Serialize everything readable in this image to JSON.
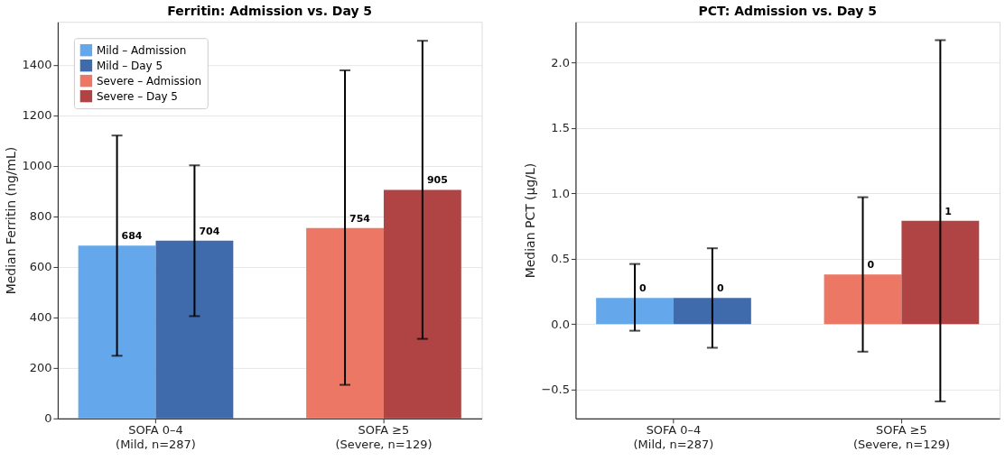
{
  "chart_data": [
    {
      "type": "bar",
      "title": "Ferritin: Admission vs. Day 5",
      "ylabel": "Median Ferritin (ng/mL)",
      "categories": [
        "SOFA 0–4\n(Mild, n=287)",
        "SOFA ≥5\n(Severe, n=129)"
      ],
      "series": [
        {
          "name": "Mild – Admission",
          "color": "#64a8eb",
          "values": [
            684,
            null
          ],
          "errors": [
            [
              248,
              1120
            ],
            null
          ]
        },
        {
          "name": "Mild – Day 5",
          "color": "#3f6aab",
          "values": [
            704,
            null
          ],
          "errors": [
            [
              405,
              1002
            ],
            null
          ]
        },
        {
          "name": "Severe – Admission",
          "color": "#eb7764",
          "values": [
            null,
            754
          ],
          "errors": [
            null,
            [
              133,
              1378
            ]
          ]
        },
        {
          "name": "Severe – Day 5",
          "color": "#b04343",
          "values": [
            null,
            905
          ],
          "errors": [
            null,
            [
              315,
              1495
            ]
          ]
        }
      ],
      "ylim": [
        0,
        1570
      ],
      "yticks": [
        0,
        200,
        400,
        600,
        800,
        1000,
        1200,
        1400
      ],
      "grid": "y",
      "legend": "top left",
      "data_labels": true
    },
    {
      "type": "bar",
      "title": "PCT: Admission vs. Day 5",
      "ylabel": "Median PCT (µg/L)",
      "categories": [
        "SOFA 0–4\n(Mild, n=287)",
        "SOFA ≥5\n(Severe, n=129)"
      ],
      "series": [
        {
          "name": "Mild – Admission",
          "color": "#64a8eb",
          "values": [
            0.2,
            null
          ],
          "errors": [
            [
              -0.05,
              0.46
            ],
            null
          ],
          "value_labels": [
            "0",
            null
          ]
        },
        {
          "name": "Mild – Day 5",
          "color": "#3f6aab",
          "values": [
            0.2,
            null
          ],
          "errors": [
            [
              -0.18,
              0.58
            ],
            null
          ],
          "value_labels": [
            "0",
            null
          ]
        },
        {
          "name": "Severe – Admission",
          "color": "#eb7764",
          "values": [
            null,
            0.38
          ],
          "errors": [
            null,
            [
              -0.21,
              0.97
            ]
          ],
          "value_labels": [
            null,
            "0"
          ]
        },
        {
          "name": "Severe – Day 5",
          "color": "#b04343",
          "values": [
            null,
            0.79
          ],
          "errors": [
            null,
            [
              -0.59,
              2.17
            ]
          ],
          "value_labels": [
            null,
            "1"
          ]
        }
      ],
      "ylim": [
        -0.72,
        2.31
      ],
      "yticks": [
        {
          "value": -0.5,
          "label": "−0.5"
        },
        {
          "value": 0,
          "label": "0.0"
        },
        0.5,
        {
          "value": 1,
          "label": "1.0"
        },
        1.5,
        {
          "value": 2,
          "label": "2.0"
        }
      ],
      "grid": "y",
      "legend": "top left"
    }
  ]
}
